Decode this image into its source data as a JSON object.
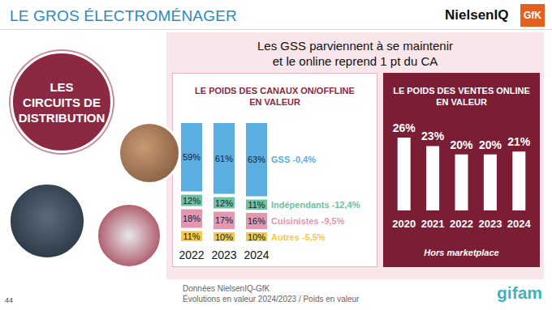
{
  "page": {
    "header": "LE GROS ÉLECTROMÉNAGER",
    "logos": [
      "NielsenIQ",
      "GfK"
    ],
    "section_lines": [
      "LES",
      "CIRCUITS DE",
      "DISTRIBUTION"
    ],
    "headline_lines": [
      "Les GSS parviennent à se maintenir",
      "et le online reprend 1 pt du CA"
    ],
    "source_lines": [
      "Données NielsenIQ-GfK",
      "Évolutions en valeur 2024/2023 / Poids en valeur"
    ],
    "footer_logo": "gifam",
    "page_number": "44"
  },
  "chart_data": [
    {
      "type": "bar",
      "stacked": true,
      "title": "LE POIDS DES CANAUX ON/OFFLINE\nEN VALEUR",
      "categories": [
        "2022",
        "2023",
        "2024"
      ],
      "series": [
        {
          "name": "Autres -5,5%",
          "color": "#f7c945",
          "values": [
            11,
            10,
            10
          ],
          "value_labels": [
            "11%",
            "10%",
            "10%"
          ]
        },
        {
          "name": "Cuisinistes -9,5%",
          "color": "#e597b0",
          "values": [
            18,
            17,
            16
          ],
          "value_labels": [
            "18%",
            "17%",
            "16%"
          ]
        },
        {
          "name": "Indépendants -12,4%",
          "color": "#6cc2a0",
          "values": [
            12,
            12,
            11
          ],
          "value_labels": [
            "12%",
            "12%",
            "11%"
          ]
        },
        {
          "name": "GSS -0,4%",
          "color": "#5aaee0",
          "values": [
            59,
            61,
            63
          ],
          "value_labels": [
            "59%",
            "61%",
            "63%"
          ]
        }
      ],
      "ylim": [
        0,
        100
      ],
      "data_labels": true,
      "tick_labels": "x"
    },
    {
      "type": "bar",
      "title": "LE POIDS DES VENTES ONLINE\nEN VALEUR",
      "subtitle": "Hors marketplace",
      "categories": [
        "2020",
        "2021",
        "2022",
        "2023",
        "2024"
      ],
      "values": [
        26,
        23,
        20,
        20,
        21
      ],
      "value_labels": [
        "26%",
        "23%",
        "20%",
        "20%",
        "21%"
      ],
      "color": "#ffffff",
      "ylim": [
        0,
        26
      ],
      "data_labels": true,
      "tick_labels": "x"
    }
  ]
}
